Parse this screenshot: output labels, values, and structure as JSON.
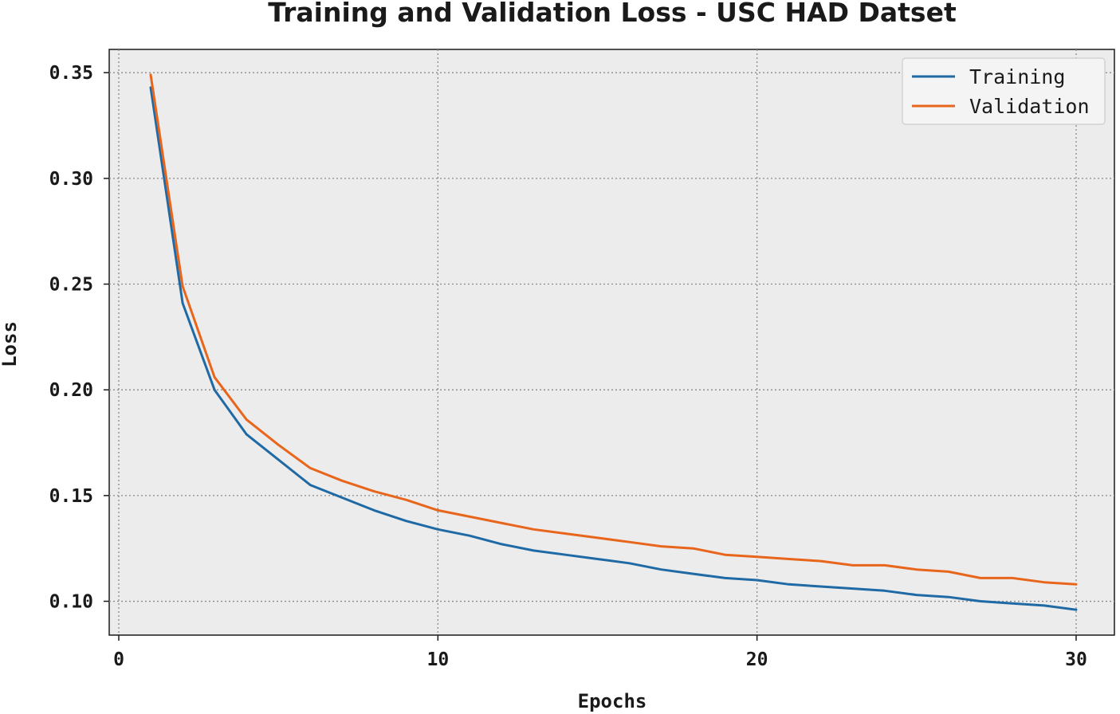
{
  "chart_data": {
    "type": "line",
    "title": "Training and Validation Loss - USC HAD Datset",
    "xlabel": "Epochs",
    "ylabel": "Loss",
    "xlim": [
      -0.3,
      31.2
    ],
    "ylim": [
      0.084,
      0.361
    ],
    "xticks": [
      0,
      10,
      20,
      30
    ],
    "yticks": [
      0.1,
      0.15,
      0.2,
      0.25,
      0.3,
      0.35
    ],
    "xtick_labels": [
      "0",
      "10",
      "20",
      "30"
    ],
    "ytick_labels": [
      "0.10",
      "0.15",
      "0.20",
      "0.25",
      "0.30",
      "0.35"
    ],
    "grid": true,
    "legend_position": "top-right",
    "x": [
      1,
      2,
      3,
      4,
      5,
      6,
      7,
      8,
      9,
      10,
      11,
      12,
      13,
      14,
      15,
      16,
      17,
      18,
      19,
      20,
      21,
      22,
      23,
      24,
      25,
      26,
      27,
      28,
      29,
      30
    ],
    "series": [
      {
        "name": "Training",
        "color": "#1f6aa5",
        "values": [
          0.343,
          0.241,
          0.2,
          0.179,
          0.167,
          0.155,
          0.149,
          0.143,
          0.138,
          0.134,
          0.131,
          0.127,
          0.124,
          0.122,
          0.12,
          0.118,
          0.115,
          0.113,
          0.111,
          0.11,
          0.108,
          0.107,
          0.106,
          0.105,
          0.103,
          0.102,
          0.1,
          0.099,
          0.098,
          0.096
        ]
      },
      {
        "name": "Validation",
        "color": "#e8661c",
        "values": [
          0.349,
          0.249,
          0.206,
          0.186,
          0.174,
          0.163,
          0.157,
          0.152,
          0.148,
          0.143,
          0.14,
          0.137,
          0.134,
          0.132,
          0.13,
          0.128,
          0.126,
          0.125,
          0.122,
          0.121,
          0.12,
          0.119,
          0.117,
          0.117,
          0.115,
          0.114,
          0.111,
          0.111,
          0.109,
          0.108
        ]
      }
    ]
  }
}
